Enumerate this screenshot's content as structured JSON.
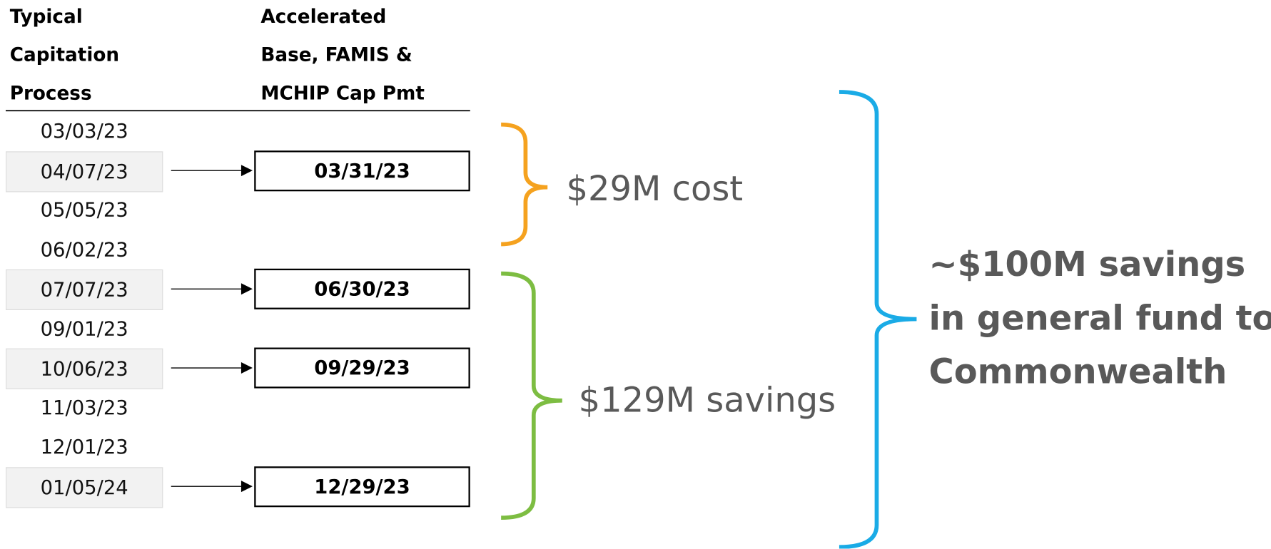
{
  "table": {
    "headers": [
      [
        "Typical",
        "Capitation",
        "Process"
      ],
      [
        "Accelerated",
        "Base, FAMIS &",
        "MCHIP Cap Pmt"
      ]
    ],
    "rows": [
      {
        "typical": "03/03/23"
      },
      {
        "typical": "04/07/23",
        "accelerated": "03/31/23"
      },
      {
        "typical": "05/05/23"
      },
      {
        "typical": "06/02/23"
      },
      {
        "typical": "07/07/23",
        "accelerated": "06/30/23"
      },
      {
        "typical": "09/01/23"
      },
      {
        "typical": "10/06/23",
        "accelerated": "09/29/23"
      },
      {
        "typical": "11/03/23"
      },
      {
        "typical": "12/01/23"
      },
      {
        "typical": "01/05/24",
        "accelerated": "12/29/23"
      }
    ]
  },
  "annotations": {
    "cost": "$29M cost",
    "savings": "$129M savings",
    "total": [
      "~$100M savings",
      "in general fund to",
      "Commonwealth"
    ]
  }
}
